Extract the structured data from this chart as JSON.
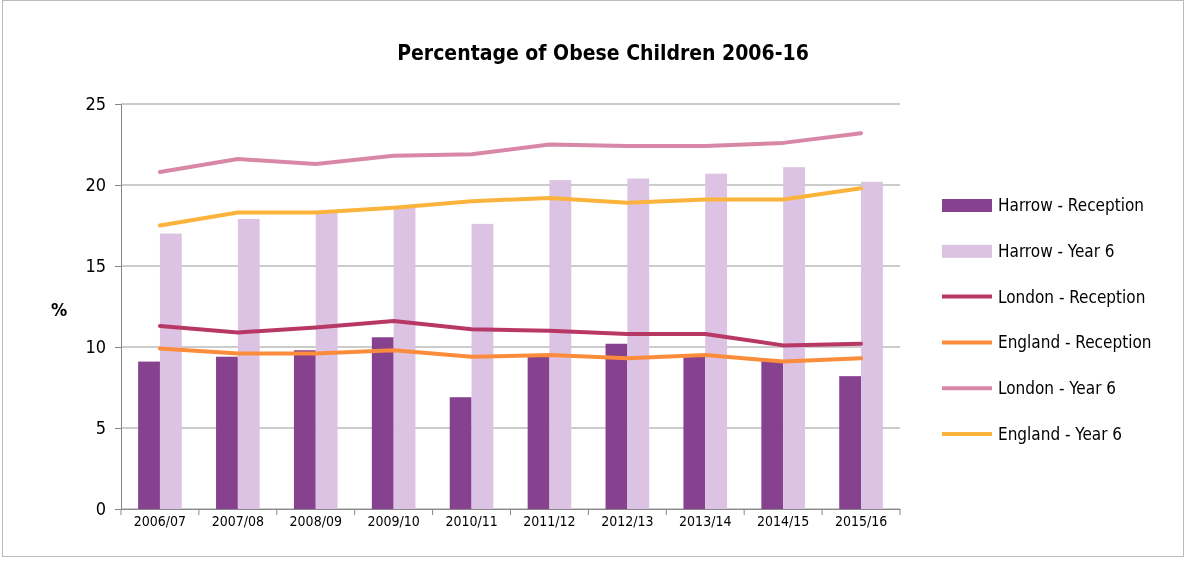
{
  "chart_data": {
    "type": "bar",
    "title": "Percentage of Obese Children 2006-16",
    "ylabel": "%",
    "categories": [
      "2006/07",
      "2007/08",
      "2008/09",
      "2009/10",
      "2010/11",
      "2011/12",
      "2012/13",
      "2013/14",
      "2014/15",
      "2015/16"
    ],
    "series": [
      {
        "name": "Harrow - Reception",
        "color": "#86418f",
        "values": [
          9.1,
          9.4,
          9.8,
          10.6,
          6.9,
          9.5,
          10.2,
          9.5,
          9.2,
          8.2
        ]
      },
      {
        "name": "Harrow - Year 6",
        "color": "#dcc3e3",
        "values": [
          17.0,
          17.9,
          18.3,
          18.7,
          17.6,
          20.3,
          20.4,
          20.7,
          21.1,
          20.2
        ]
      },
      {
        "name": "London - Reception",
        "type": "line",
        "color": "#b83865",
        "values": [
          11.3,
          10.9,
          11.2,
          11.6,
          11.1,
          11.0,
          10.8,
          10.8,
          10.1,
          10.2
        ]
      },
      {
        "name": "England - Reception",
        "type": "line",
        "color": "#fb8c3c",
        "values": [
          9.9,
          9.6,
          9.6,
          9.8,
          9.4,
          9.5,
          9.3,
          9.5,
          9.1,
          9.3
        ]
      },
      {
        "name": "London - Year 6",
        "type": "line",
        "color": "#d987a7",
        "values": [
          20.8,
          21.6,
          21.3,
          21.8,
          21.9,
          22.5,
          22.4,
          22.4,
          22.6,
          23.2
        ]
      },
      {
        "name": "England - Year 6",
        "type": "line",
        "color": "#fbb33b",
        "values": [
          17.5,
          18.3,
          18.3,
          18.6,
          19.0,
          19.2,
          18.9,
          19.1,
          19.1,
          19.8
        ]
      }
    ],
    "ylim": [
      0,
      25
    ],
    "yticks": [
      0,
      5,
      10,
      15,
      20,
      25
    ],
    "grid": "y",
    "legend": "right",
    "marker": "none",
    "line_style": "solid"
  }
}
